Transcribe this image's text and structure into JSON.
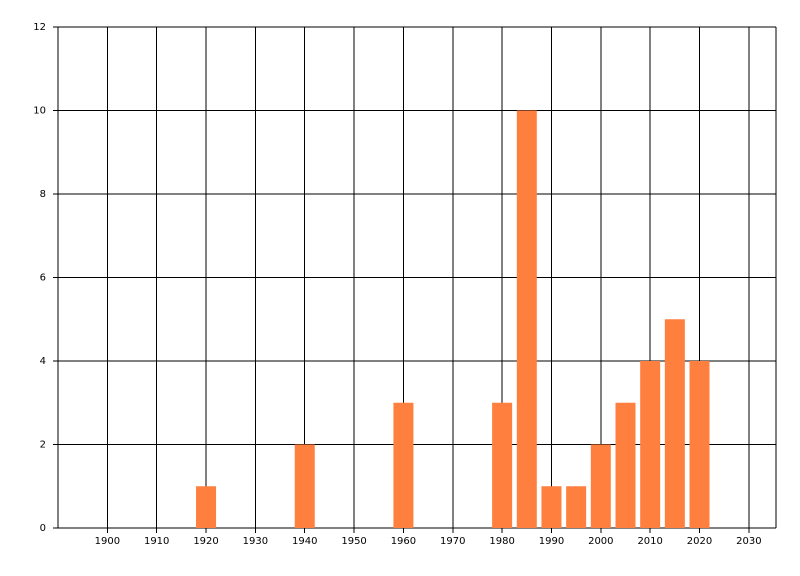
{
  "chart_data": {
    "type": "bar",
    "x": [
      1920,
      1940,
      1960,
      1980,
      1985,
      1990,
      1995,
      2000,
      2005,
      2010,
      2015,
      2020
    ],
    "values": [
      1,
      2,
      3,
      3,
      10,
      1,
      1,
      2,
      3,
      4,
      5,
      4
    ],
    "color": "#ff7f3f",
    "xlim": [
      1890,
      2035.5
    ],
    "xticks": [
      1900,
      1910,
      1920,
      1930,
      1940,
      1950,
      1960,
      1970,
      1980,
      1990,
      2000,
      2010,
      2020,
      2030
    ],
    "ylim": [
      0,
      12
    ],
    "yticks": [
      0,
      2,
      4,
      6,
      8,
      10,
      12
    ],
    "grid": true
  }
}
